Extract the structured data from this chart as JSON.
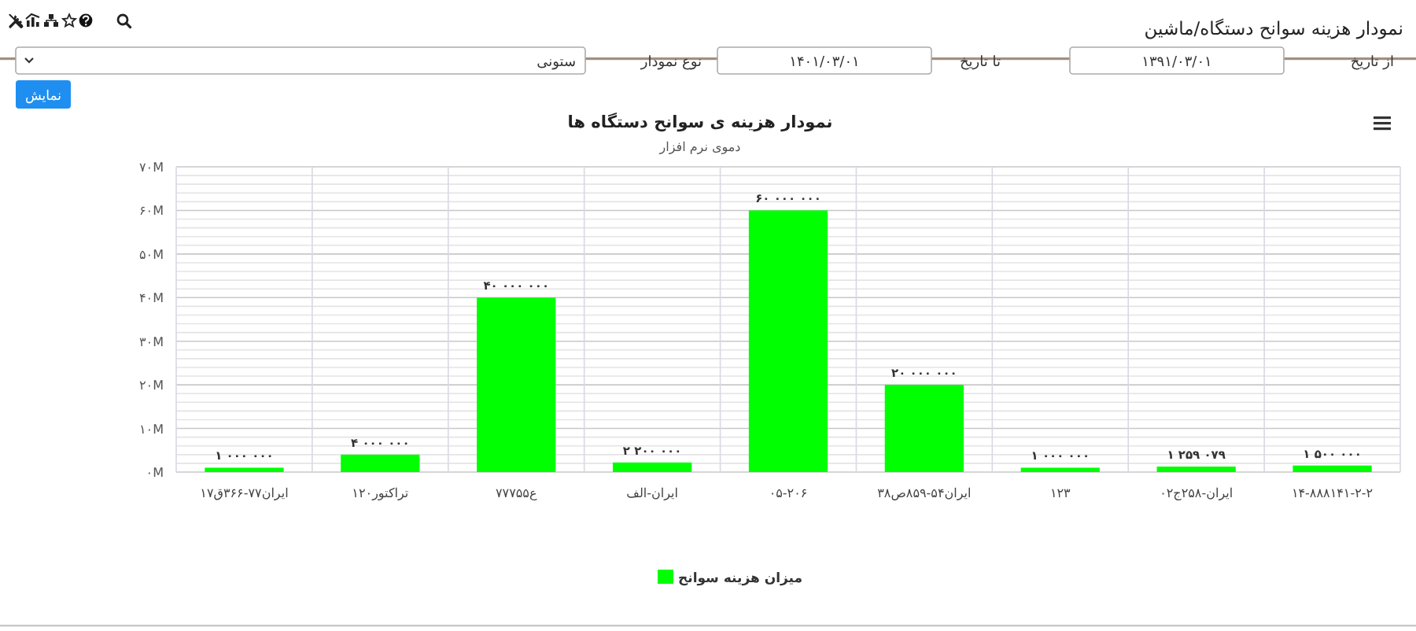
{
  "chart_data": [
    {
      "type": "other",
      "title": "نمودار هزینه سوانح دستگاه/ماشین",
      "annotations": [
        "از تاریخ",
        "۱۳۹۱/۰۳/۰۱",
        "تا تاریخ",
        "۱۴۰۱/۰۳/۰۱",
        "نوع نمودار",
        "ستونی",
        "نمایش"
      ]
    },
    {
      "type": "bar",
      "title": "نمودار هزینه ی سوانح دستگاه ها",
      "subtitle": "دموی نرم افزار",
      "categories": [
        "ایران۷۷-۳۶۶ق۱۷",
        "تراکتور۱۲۰",
        "ع۷۷۷۵۵",
        "ایران-الف",
        "۰۵-۲۰۶",
        "ایران۵۴-۸۵۹ص۳۸",
        "۱۲۳",
        "ایران-۲۵۸ج۰۲",
        "۱۴-۸۸۸۱۴۱-۲-۲"
      ],
      "series": [
        {
          "name": "میزان هزینه سوانح",
          "color": "#00ff00",
          "values": [
            1000000,
            4000000,
            40000000,
            2200000,
            60000000,
            20000000,
            1000000,
            1259079,
            1500000
          ],
          "value_labels": [
            "۱ ۰۰۰ ۰۰۰",
            "۴ ۰۰۰ ۰۰۰",
            "۴۰ ۰۰۰ ۰۰۰",
            "۲ ۲۰۰ ۰۰۰",
            "۶۰ ۰۰۰ ۰۰۰",
            "۲۰ ۰۰۰ ۰۰۰",
            "۱ ۰۰۰ ۰۰۰",
            "۱ ۲۵۹ ۰۷۹",
            "۱ ۵۰۰ ۰۰۰"
          ]
        }
      ],
      "ylim": [
        0,
        70000000
      ],
      "yticks": [
        {
          "value": 0,
          "label": "۰M"
        },
        {
          "value": 2000000,
          "label": null
        },
        {
          "value": 4000000,
          "label": null
        },
        {
          "value": 6000000,
          "label": null
        },
        {
          "value": 8000000,
          "label": null
        },
        {
          "value": 10000000,
          "label": "۱۰M"
        },
        {
          "value": 12000000,
          "label": null
        },
        {
          "value": 14000000,
          "label": null
        },
        {
          "value": 16000000,
          "label": null
        },
        {
          "value": 18000000,
          "label": null
        },
        {
          "value": 20000000,
          "label": "۲۰M"
        },
        {
          "value": 22000000,
          "label": null
        },
        {
          "value": 24000000,
          "label": null
        },
        {
          "value": 26000000,
          "label": null
        },
        {
          "value": 28000000,
          "label": null
        },
        {
          "value": 30000000,
          "label": "۳۰M"
        },
        {
          "value": 32000000,
          "label": null
        },
        {
          "value": 34000000,
          "label": null
        },
        {
          "value": 36000000,
          "label": null
        },
        {
          "value": 38000000,
          "label": null
        },
        {
          "value": 40000000,
          "label": "۴۰M"
        },
        {
          "value": 42000000,
          "label": null
        },
        {
          "value": 44000000,
          "label": null
        },
        {
          "value": 46000000,
          "label": null
        },
        {
          "value": 48000000,
          "label": null
        },
        {
          "value": 50000000,
          "label": "۵۰M"
        },
        {
          "value": 52000000,
          "label": null
        },
        {
          "value": 54000000,
          "label": null
        },
        {
          "value": 56000000,
          "label": null
        },
        {
          "value": 58000000,
          "label": null
        },
        {
          "value": 60000000,
          "label": "۶۰M"
        },
        {
          "value": 62000000,
          "label": null
        },
        {
          "value": 64000000,
          "label": null
        },
        {
          "value": 66000000,
          "label": null
        },
        {
          "value": 68000000,
          "label": null
        },
        {
          "value": 70000000,
          "label": "۷۰M"
        }
      ],
      "grid": true,
      "legend": "bottom"
    }
  ]
}
